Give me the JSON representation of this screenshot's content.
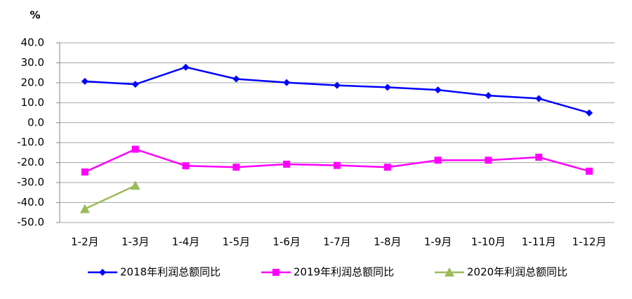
{
  "chart_data": {
    "type": "line",
    "y_unit": "%",
    "categories": [
      "1-2月",
      "1-3月",
      "1-4月",
      "1-5月",
      "1-6月",
      "1-7月",
      "1-8月",
      "1-9月",
      "1-10月",
      "1-11月",
      "1-12月"
    ],
    "series": [
      {
        "name": "2018年利润总额同比",
        "color": "#0000ff",
        "marker": "diamond",
        "values": [
          20.7,
          19.2,
          27.8,
          21.9,
          20.1,
          18.7,
          17.7,
          16.4,
          13.6,
          12.1,
          4.9
        ]
      },
      {
        "name": "2019年利润总额同比",
        "color": "#ff00ff",
        "marker": "square",
        "values": [
          -24.7,
          -13.3,
          -21.6,
          -22.3,
          -20.8,
          -21.4,
          -22.3,
          -18.8,
          -18.8,
          -17.3,
          -24.3
        ]
      },
      {
        "name": "2020年利润总额同比",
        "color": "#9bbb59",
        "marker": "triangle",
        "values": [
          -43.2,
          -31.5,
          null,
          null,
          null,
          null,
          null,
          null,
          null,
          null,
          null
        ]
      }
    ],
    "ylim": [
      -50,
      40
    ],
    "yticks": [
      {
        "value": 40,
        "label": "40.0"
      },
      {
        "value": 30,
        "label": "30.0"
      },
      {
        "value": 20,
        "label": "20.0"
      },
      {
        "value": 10,
        "label": "10.0"
      },
      {
        "value": 0,
        "label": "0.0"
      },
      {
        "value": -10,
        "label": "-10.0"
      },
      {
        "value": -20,
        "label": "-20.0"
      },
      {
        "value": -30,
        "label": "-30.0"
      },
      {
        "value": -40,
        "label": "-40.0"
      },
      {
        "value": -50,
        "label": "-50.0"
      }
    ],
    "grid": true,
    "legend": "bottom"
  }
}
